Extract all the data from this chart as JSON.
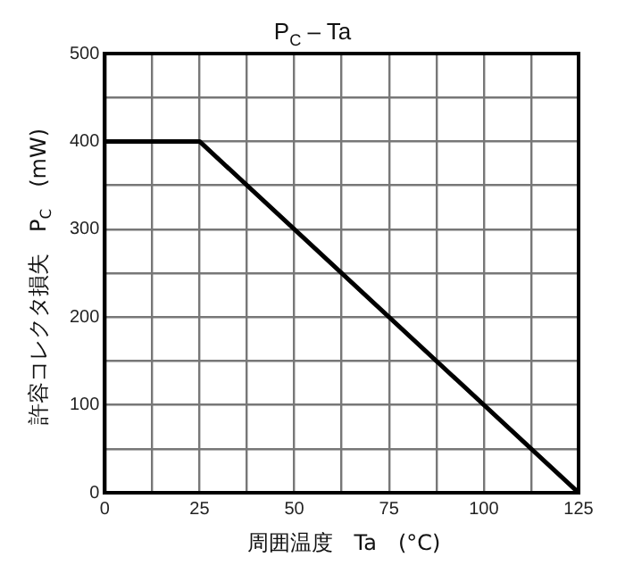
{
  "chart_data": {
    "type": "line",
    "title": "P$_{C}$ – Ta",
    "xlabel": "周囲温度　Ta　(°C)",
    "ylabel": "許容コレクタ損失　P$_{C}$　(mW)",
    "x": [
      0,
      25,
      125
    ],
    "series": [
      {
        "color": "#000000",
        "values": [
          400,
          400,
          0
        ]
      }
    ],
    "xlim": [
      0,
      125
    ],
    "xticks": [
      0,
      {
        "value": 12.5,
        "label": null
      },
      25,
      {
        "value": 37.5,
        "label": null
      },
      50,
      {
        "value": 62.5,
        "label": null
      },
      75,
      {
        "value": 87.5,
        "label": null
      },
      100,
      {
        "value": 112.5,
        "label": null
      },
      125
    ],
    "ylim": [
      0,
      500
    ],
    "yticks": [
      0,
      {
        "value": 50,
        "label": null
      },
      100,
      {
        "value": 150,
        "label": null
      },
      200,
      {
        "value": 250,
        "label": null
      },
      300,
      {
        "value": 350,
        "label": null
      },
      400,
      {
        "value": 450,
        "label": null
      },
      500
    ],
    "grid": true,
    "legend": false,
    "marker": "none",
    "line_style": "solid"
  }
}
